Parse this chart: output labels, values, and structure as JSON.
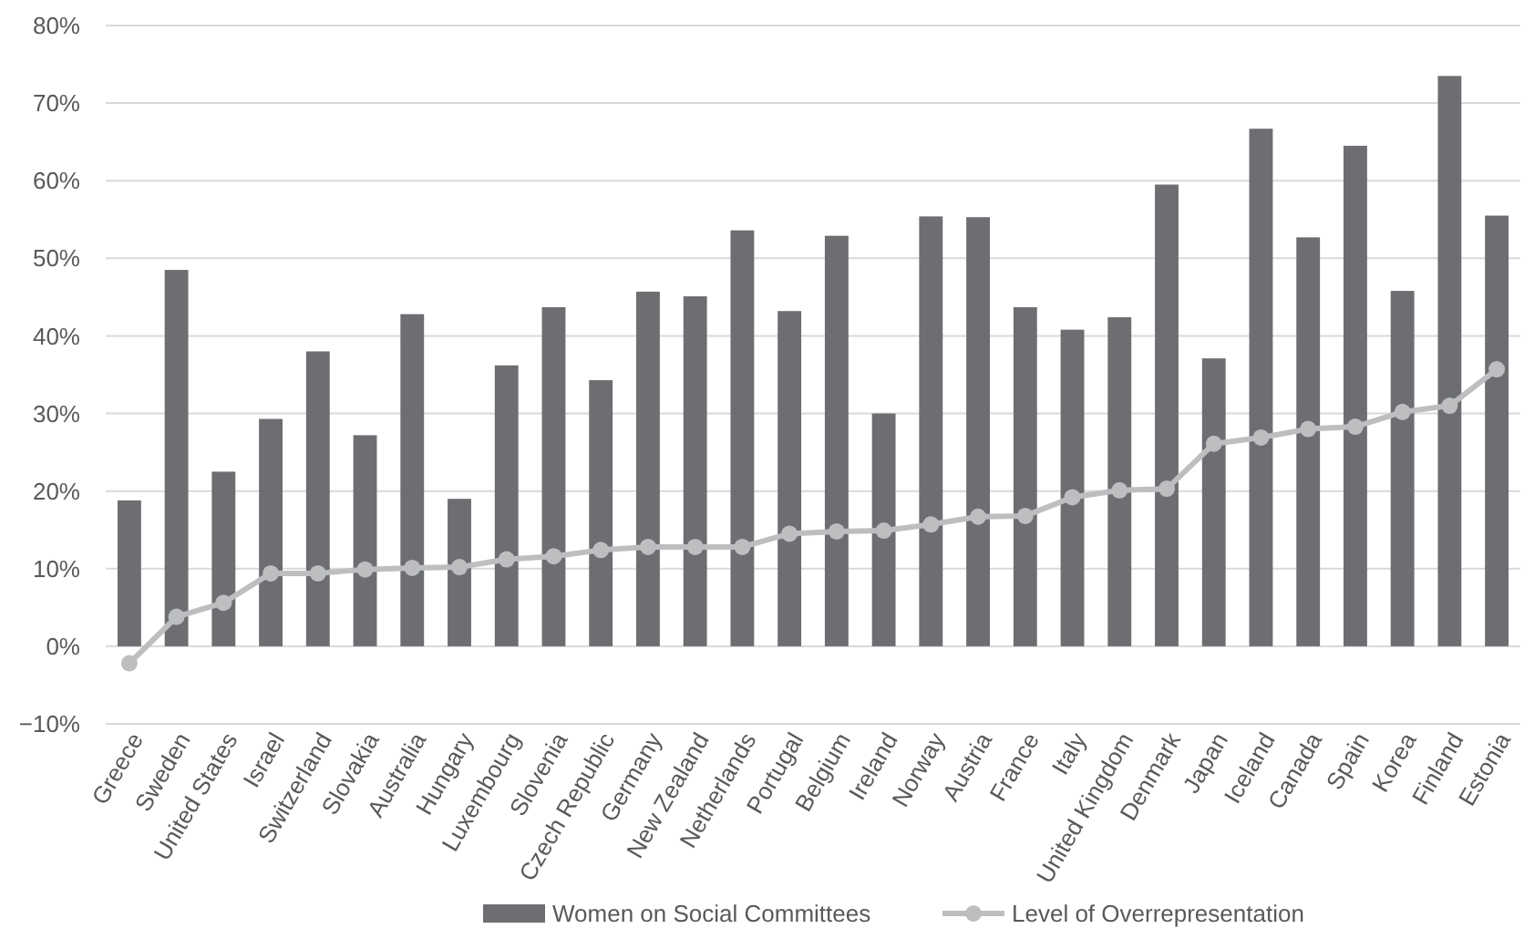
{
  "chart_data": {
    "type": "bar",
    "categories": [
      "Greece",
      "Sweden",
      "United States",
      "Israel",
      "Switzerland",
      "Slovakia",
      "Australia",
      "Hungary",
      "Luxembourg",
      "Slovenia",
      "Czech Republic",
      "Germany",
      "New Zealand",
      "Netherlands",
      "Portugal",
      "Belgium",
      "Ireland",
      "Norway",
      "Austria",
      "France",
      "Italy",
      "United Kingdom",
      "Denmark",
      "Japan",
      "Iceland",
      "Canada",
      "Spain",
      "Korea",
      "Finland",
      "Estonia"
    ],
    "series": [
      {
        "name": "Women on Social Committees",
        "color": "#6d6e71",
        "values": [
          18.8,
          48.5,
          22.5,
          29.3,
          38,
          27.2,
          42.8,
          19,
          36.2,
          43.7,
          34.3,
          45.7,
          45.1,
          53.6,
          43.2,
          52.9,
          30,
          55.4,
          55.3,
          43.7,
          40.8,
          42.4,
          59.5,
          37.1,
          66.7,
          52.7,
          64.5,
          45.8,
          73.5,
          55.5
        ]
      },
      {
        "name": "Level of Overrepresentation",
        "type": "line",
        "color": "#bcbec0",
        "marker": "circle",
        "values": [
          -2.2,
          3.8,
          5.6,
          9.4,
          9.4,
          9.9,
          10.1,
          10.2,
          11.2,
          11.6,
          12.4,
          12.8,
          12.8,
          12.8,
          14.5,
          14.8,
          14.9,
          15.7,
          16.7,
          16.8,
          19.2,
          20.1,
          20.3,
          26.1,
          26.9,
          28,
          28.3,
          30.2,
          31,
          35.7
        ]
      }
    ],
    "ylim": [
      -10,
      80
    ],
    "yticks": [
      {
        "value": -10,
        "label": "−10%"
      },
      {
        "value": 0,
        "label": "0%"
      },
      {
        "value": 10,
        "label": "10%"
      },
      {
        "value": 20,
        "label": "20%"
      },
      {
        "value": 30,
        "label": "30%"
      },
      {
        "value": 40,
        "label": "40%"
      },
      {
        "value": 50,
        "label": "50%"
      },
      {
        "value": 60,
        "label": "60%"
      },
      {
        "value": 70,
        "label": "70%"
      },
      {
        "value": 80,
        "label": "80%"
      }
    ],
    "grid": "y",
    "legend": "bottom"
  }
}
